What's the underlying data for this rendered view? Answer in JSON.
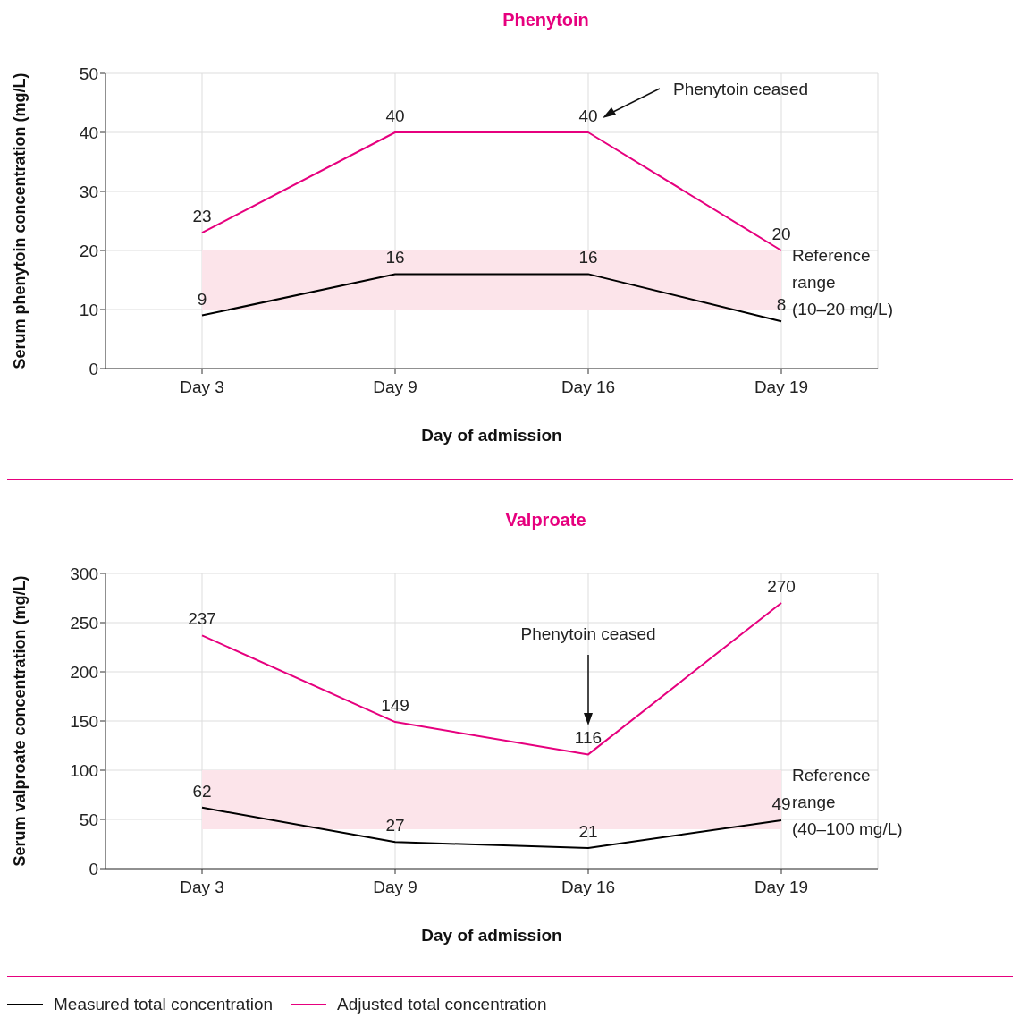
{
  "chart_data": [
    {
      "type": "line",
      "title": "Phenytoin",
      "xlabel": "Day of admission",
      "ylabel": "Serum phenytoin concentration (mg/L)",
      "categories": [
        "Day 3",
        "Day 9",
        "Day 16",
        "Day 19"
      ],
      "series": [
        {
          "color": "#000000",
          "values": [
            9,
            16,
            16,
            8
          ]
        },
        {
          "color": "#e6007e",
          "values": [
            23,
            40,
            40,
            20
          ]
        }
      ],
      "ylim": [
        0,
        50
      ],
      "yticks": [
        0,
        10,
        20,
        30,
        40,
        50
      ],
      "grid": true,
      "data_labels": true,
      "marker": "none",
      "line_style": "solid",
      "bands": [
        {
          "axis": "y",
          "from": 10,
          "to": 20,
          "label": "Reference range (10–20 mg/L)",
          "color": "#fce4ea"
        }
      ],
      "annotations": [
        "Phenytoin ceased"
      ]
    },
    {
      "type": "line",
      "title": "Valproate",
      "xlabel": "Day of admission",
      "ylabel": "Serum valproate concentration (mg/L)",
      "categories": [
        "Day 3",
        "Day 9",
        "Day 16",
        "Day 19"
      ],
      "series": [
        {
          "name": "Measured total concentration",
          "color": "#000000",
          "values": [
            62,
            27,
            21,
            49
          ]
        },
        {
          "name": "Adjusted total concentration",
          "color": "#e6007e",
          "values": [
            237,
            149,
            116,
            270
          ]
        }
      ],
      "ylim": [
        0,
        300
      ],
      "yticks": [
        0,
        50,
        100,
        150,
        200,
        250,
        300
      ],
      "grid": true,
      "data_labels": true,
      "marker": "none",
      "line_style": "solid",
      "legend": "bottom",
      "bands": [
        {
          "axis": "y",
          "from": 40,
          "to": 100,
          "label": "Reference range (40–100 mg/L)",
          "color": "#fce4ea"
        }
      ],
      "annotations": [
        "Phenytoin ceased"
      ]
    }
  ]
}
